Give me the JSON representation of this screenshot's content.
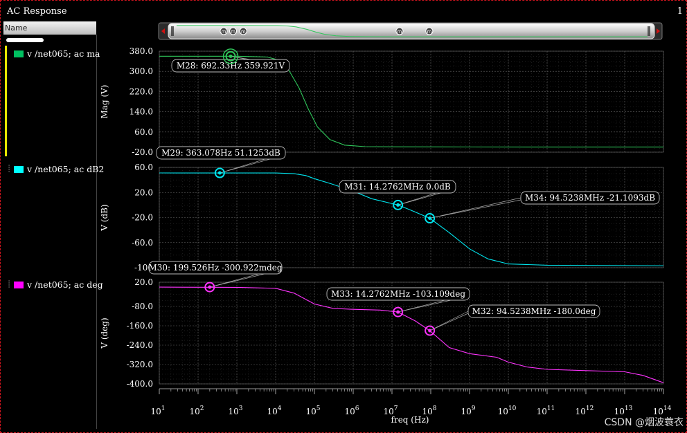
{
  "window": {
    "title": "AC Response",
    "corner_label": "1"
  },
  "sidebar": {
    "header": "Name",
    "items": [
      {
        "label": "v /net065; ac ma",
        "color": "#00c060"
      },
      {
        "label": "v /net065; ac dB2",
        "color": "#00ffff"
      },
      {
        "label": "v /net065; ac deg",
        "color": "#ff00ff"
      }
    ]
  },
  "watermark": "CSDN @烟波蓑衣",
  "chart_data": {
    "type": "line",
    "xlabel": "freq (Hz)",
    "x_scale": "log",
    "x_ticks": [
      {
        "base": "10",
        "exp": "1"
      },
      {
        "base": "10",
        "exp": "2"
      },
      {
        "base": "10",
        "exp": "3"
      },
      {
        "base": "10",
        "exp": "4"
      },
      {
        "base": "10",
        "exp": "5"
      },
      {
        "base": "10",
        "exp": "6"
      },
      {
        "base": "10",
        "exp": "7"
      },
      {
        "base": "10",
        "exp": "8"
      },
      {
        "base": "10",
        "exp": "9"
      },
      {
        "base": "10",
        "exp": "10"
      },
      {
        "base": "10",
        "exp": "11"
      },
      {
        "base": "10",
        "exp": "12"
      },
      {
        "base": "10",
        "exp": "13"
      },
      {
        "base": "10",
        "exp": "14"
      }
    ],
    "xlim": [
      10,
      100000000000000.0
    ],
    "grid": true,
    "panels": [
      {
        "name": "mag",
        "ylabel": "Mag (V)",
        "ylim": [
          -20,
          380
        ],
        "yticks": [
          380,
          300,
          220,
          140,
          60,
          -20
        ],
        "ytick_labels": [
          "380.0",
          "300.0",
          "220.0",
          "140.0",
          "60.0",
          "-20.0"
        ],
        "color": "#2fc65a",
        "points": [
          [
            10,
            360
          ],
          [
            1000,
            359.9
          ],
          [
            6000,
            357
          ],
          [
            12000,
            345
          ],
          [
            20000,
            315
          ],
          [
            40000,
            235
          ],
          [
            70000,
            150
          ],
          [
            120000,
            80
          ],
          [
            250000,
            30
          ],
          [
            600000,
            8
          ],
          [
            2000000,
            2
          ],
          [
            10000000,
            1
          ],
          [
            1000000000.0,
            0.5
          ],
          [
            100000000000000.0,
            0.3
          ]
        ],
        "markers": [
          {
            "label": "M28: 692.33Hz 359.921V",
            "x": 692.33,
            "y": 359.921
          }
        ]
      },
      {
        "name": "db",
        "ylabel": "V (dB)",
        "ylim": [
          -100,
          60
        ],
        "yticks": [
          60,
          20,
          -20,
          -60,
          -100
        ],
        "ytick_labels": [
          "60.0",
          "20.0",
          "-20.0",
          "-60.0",
          "-100"
        ],
        "color": "#00e5ee",
        "points": [
          [
            10,
            51.13
          ],
          [
            10000,
            51.1
          ],
          [
            30000,
            50
          ],
          [
            60000,
            47
          ],
          [
            100000,
            42
          ],
          [
            300000,
            33
          ],
          [
            1000000,
            22
          ],
          [
            3000000,
            10
          ],
          [
            14276200,
            0
          ],
          [
            30000000,
            -8
          ],
          [
            94523800,
            -21.11
          ],
          [
            300000000,
            -44
          ],
          [
            1000000000,
            -70
          ],
          [
            3000000000,
            -86
          ],
          [
            10000000000,
            -94
          ],
          [
            100000000000,
            -96
          ],
          [
            100000000000000.0,
            -97
          ]
        ],
        "markers": [
          {
            "label": "M29: 363.078Hz 51.1253dB",
            "x": 363.078,
            "y": 51.1253
          },
          {
            "label": "M31: 14.2762MHz 0.0dB",
            "x": 14276200,
            "y": 0
          },
          {
            "label": "M34: 94.5238MHz -21.1093dB",
            "x": 94523800,
            "y": -21.1093
          }
        ]
      },
      {
        "name": "deg",
        "ylabel": "V (deg)",
        "ylim": [
          -400,
          20
        ],
        "yticks": [
          20,
          -80,
          -160,
          -240,
          -320,
          -400
        ],
        "ytick_labels": [
          "20.0",
          "-80.0",
          "-160.0",
          "-240.0",
          "-320.0",
          "-400.0"
        ],
        "color": "#ff33ff",
        "points": [
          [
            10,
            -0.3
          ],
          [
            1000,
            -1
          ],
          [
            10000,
            -5
          ],
          [
            30000,
            -25
          ],
          [
            100000,
            -70
          ],
          [
            300000,
            -88
          ],
          [
            1000000,
            -92
          ],
          [
            5000000,
            -95
          ],
          [
            14276200,
            -103.1
          ],
          [
            40000000,
            -140
          ],
          [
            94523800,
            -180
          ],
          [
            300000000,
            -250
          ],
          [
            1000000000,
            -275
          ],
          [
            5000000000,
            -290
          ],
          [
            10000000000,
            -310
          ],
          [
            30000000000,
            -330
          ],
          [
            100000000000,
            -340
          ],
          [
            1000000000000.0,
            -345
          ],
          [
            10000000000000.0,
            -350
          ],
          [
            30000000000000.0,
            -365
          ],
          [
            100000000000000.0,
            -395
          ]
        ],
        "markers": [
          {
            "label": "M30: 199.526Hz -300.922mdeg",
            "x": 199.526,
            "y": -0.300922
          },
          {
            "label": "M33: 14.2762MHz -103.109deg",
            "x": 14276200,
            "y": -103.109
          },
          {
            "label": "M32: 94.5238MHz -180.0deg",
            "x": 94523800,
            "y": -180
          }
        ]
      }
    ]
  }
}
